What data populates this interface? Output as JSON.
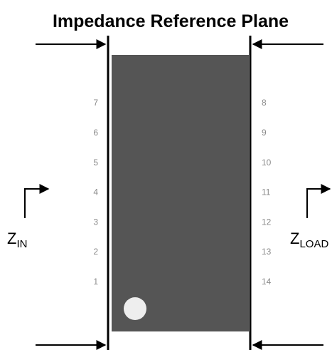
{
  "title": "Impedance Reference Plane",
  "left_pins": [
    "7",
    "6",
    "5",
    "4",
    "3",
    "2",
    "1"
  ],
  "right_pins": [
    "8",
    "9",
    "10",
    "11",
    "12",
    "13",
    "14"
  ],
  "z_in": {
    "main": "Z",
    "sub": "IN"
  },
  "z_load": {
    "main": "Z",
    "sub": "LOAD"
  }
}
